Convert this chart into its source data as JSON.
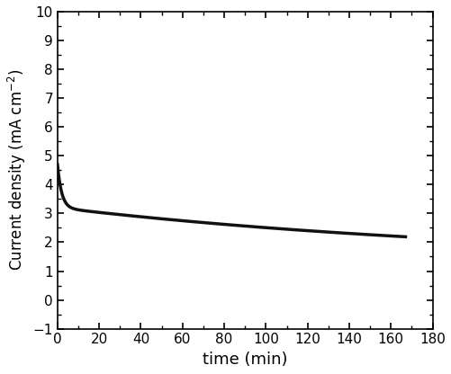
{
  "xlabel": "time (min)",
  "ylabel": "Current density (mA cm$^{-2}$)",
  "xlim": [
    0,
    170
  ],
  "ylim": [
    -1,
    10
  ],
  "xticks": [
    0,
    20,
    40,
    60,
    80,
    100,
    120,
    140,
    160,
    180
  ],
  "yticks": [
    -1,
    0,
    1,
    2,
    3,
    4,
    5,
    6,
    7,
    8,
    9,
    10
  ],
  "line_color": "#111111",
  "line_width": 2.5,
  "background_color": "#ffffff",
  "A1": 2.5,
  "tau1": 2.2,
  "A2": 0.95,
  "tau2": 300.0,
  "C": 1.15,
  "t_end": 167.0,
  "xlabel_fontsize": 13,
  "ylabel_fontsize": 12,
  "tick_labelsize": 11
}
